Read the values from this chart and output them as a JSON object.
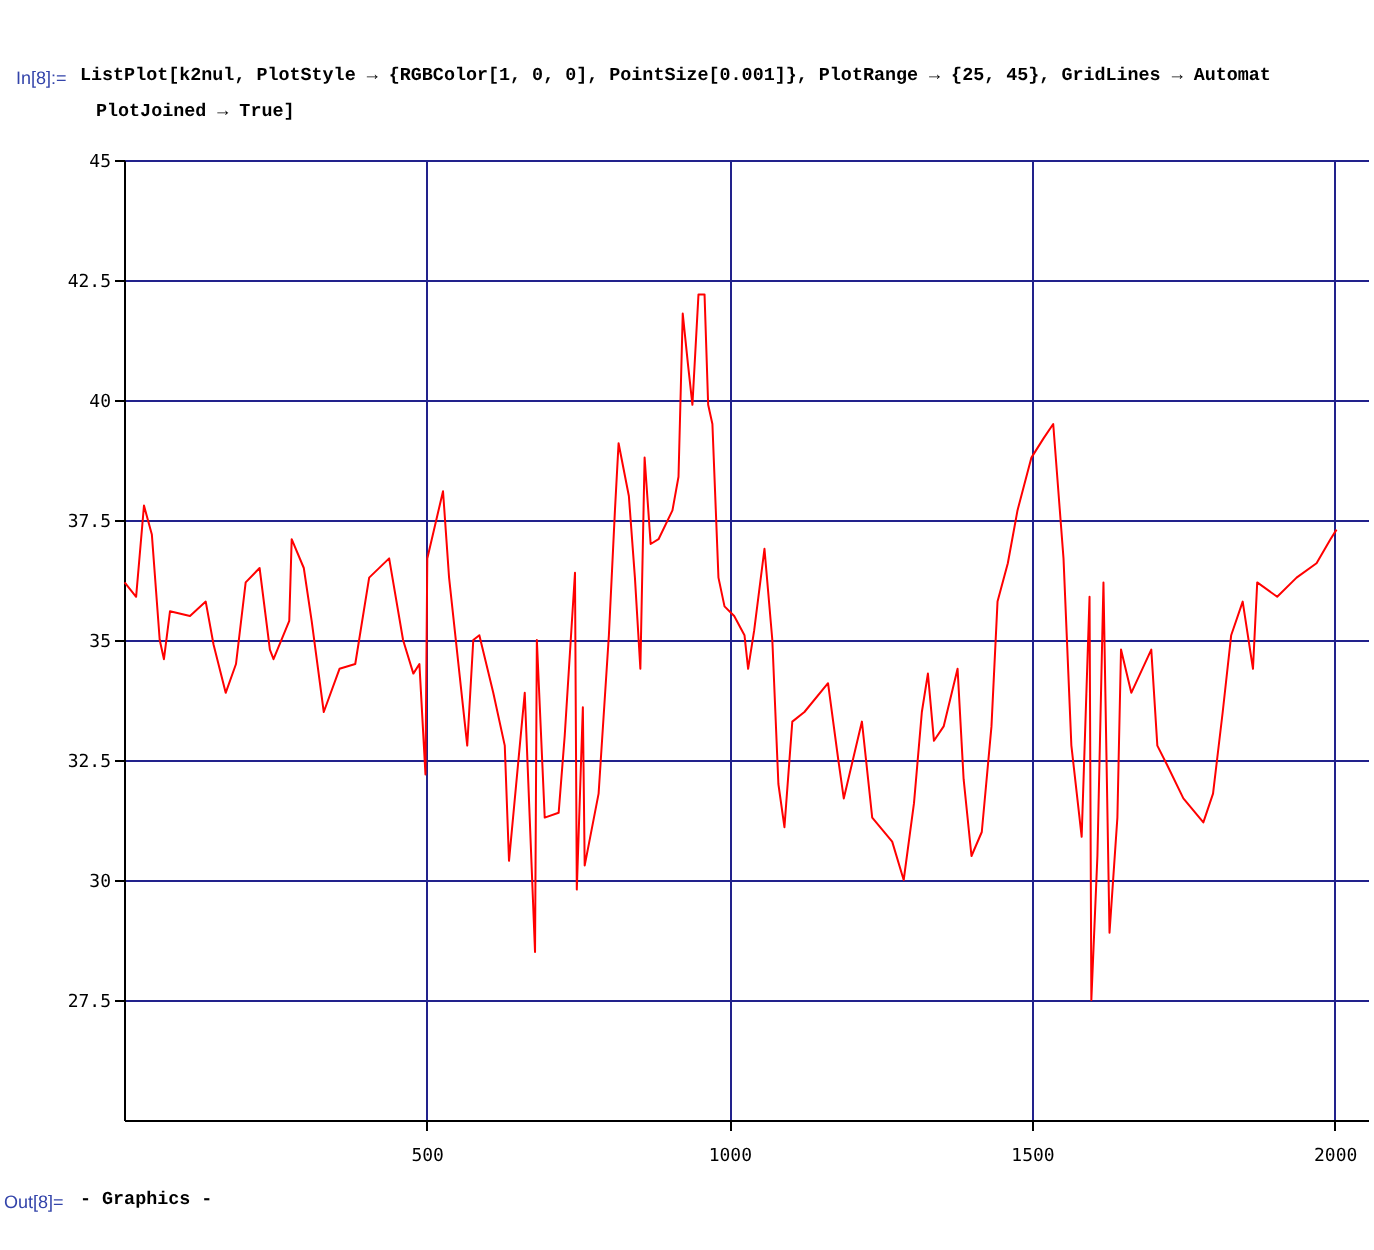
{
  "chart_data": {
    "type": "line",
    "annotations": [
      "In[8]:=",
      "ListPlot[k2nul, PlotStyle → {RGBColor[1, 0, 0], PointSize[0.001]}, PlotRange → {25, 45}, GridLines → Automat",
      "PlotJoined → True]",
      "Out[8]=",
      "- Graphics -"
    ],
    "x": [
      1,
      20,
      33,
      46,
      59,
      66,
      76,
      109,
      135,
      148,
      168,
      185,
      201,
      224,
      241,
      247,
      273,
      277,
      297,
      310,
      330,
      356,
      382,
      405,
      438,
      461,
      478,
      488,
      498,
      501,
      527,
      537,
      567,
      577,
      587,
      610,
      629,
      636,
      662,
      679,
      682,
      695,
      718,
      728,
      745,
      748,
      758,
      761,
      784,
      801,
      811,
      817,
      834,
      844,
      853,
      860,
      870,
      883,
      906,
      916,
      923,
      932,
      939,
      949,
      959,
      965,
      972,
      982,
      992,
      1008,
      1025,
      1031,
      1041,
      1058,
      1071,
      1081,
      1091,
      1104,
      1124,
      1163,
      1180,
      1189,
      1219,
      1236,
      1269,
      1288,
      1305,
      1318,
      1328,
      1338,
      1354,
      1377,
      1387,
      1400,
      1417,
      1433,
      1443,
      1460,
      1476,
      1499,
      1519,
      1535,
      1552,
      1565,
      1582,
      1595,
      1598,
      1608,
      1618,
      1628,
      1641,
      1647,
      1664,
      1697,
      1707,
      1723,
      1750,
      1783,
      1799,
      1815,
      1829,
      1848,
      1865,
      1872,
      1905,
      1937,
      1970,
      1993,
      2003
    ],
    "series": [
      {
        "color": "#ff0000",
        "values": [
          36.2,
          35.9,
          37.8,
          37.2,
          35.0,
          34.6,
          35.6,
          35.5,
          35.8,
          34.9,
          33.9,
          34.5,
          36.2,
          36.5,
          34.8,
          34.6,
          35.4,
          37.1,
          36.5,
          35.4,
          33.5,
          34.4,
          34.5,
          36.3,
          36.7,
          35.0,
          34.3,
          34.5,
          32.2,
          36.7,
          38.1,
          36.3,
          32.8,
          35.0,
          35.1,
          33.9,
          32.8,
          30.4,
          33.9,
          28.5,
          35.0,
          31.3,
          31.4,
          33.0,
          36.4,
          29.8,
          33.6,
          30.3,
          31.8,
          35.1,
          37.7,
          39.1,
          38.0,
          36.3,
          34.4,
          38.8,
          37.0,
          37.1,
          37.7,
          38.4,
          41.8,
          40.7,
          39.9,
          42.2,
          42.2,
          39.9,
          39.5,
          36.3,
          35.7,
          35.5,
          35.1,
          34.4,
          35.2,
          36.9,
          35.0,
          32.0,
          31.1,
          33.3,
          33.5,
          34.1,
          32.5,
          31.7,
          33.3,
          31.3,
          30.8,
          30.0,
          31.6,
          33.5,
          34.3,
          32.9,
          33.2,
          34.4,
          32.1,
          30.5,
          31.0,
          33.2,
          35.8,
          36.6,
          37.7,
          38.8,
          39.2,
          39.5,
          36.7,
          32.8,
          30.9,
          35.9,
          27.5,
          30.5,
          36.2,
          28.9,
          31.3,
          34.8,
          33.9,
          34.8,
          32.8,
          32.4,
          31.7,
          31.2,
          31.8,
          33.5,
          35.1,
          35.8,
          34.4,
          36.2,
          35.9,
          36.3,
          36.6,
          37.1,
          37.3
        ]
      }
    ],
    "xlim": [
      0,
      2055
    ],
    "xticks": [
      500,
      1000,
      1500,
      2000
    ],
    "ylim": [
      25,
      45
    ],
    "yticks": [
      27.5,
      30,
      32.5,
      35,
      37.5,
      40,
      42.5,
      45
    ],
    "grid": true,
    "marker": "none",
    "line_style": "solid"
  }
}
